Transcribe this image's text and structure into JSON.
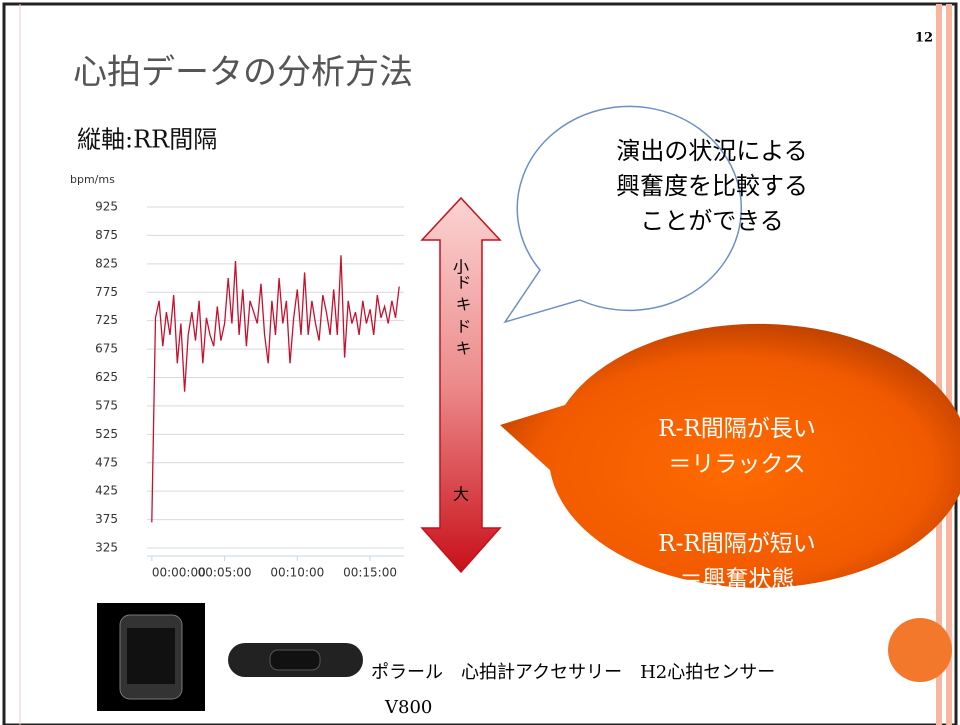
{
  "slide": {
    "page_number": "12",
    "title": "心拍データの分析方法",
    "subtitle": "縦軸:RR間隔",
    "arrow": {
      "top": "小",
      "middle": "ドキドキ",
      "bottom": "大"
    },
    "callout_blue": [
      "演出の状況による",
      "興奮度を比較する",
      "ことができる"
    ],
    "callout_orange": [
      "R-R間隔が長い",
      "＝リラックス",
      "R-R間隔が短い",
      "＝興奮状態"
    ],
    "caption": "ポラール　心拍計アクセサリー　H2心拍センサー",
    "caption_model": "V800"
  },
  "chart_data": {
    "type": "line",
    "y_unit": "bpm/ms",
    "x": [
      0,
      15,
      30,
      45,
      60,
      75,
      90,
      105,
      120,
      135,
      150,
      165,
      180,
      195,
      210,
      225,
      240,
      255,
      270,
      285,
      300,
      315,
      330,
      345,
      360,
      375,
      390,
      405,
      420,
      435,
      450,
      465,
      480,
      495,
      510,
      525,
      540,
      555,
      570,
      585,
      600,
      615,
      630,
      645,
      660,
      675,
      690,
      705,
      720,
      735,
      750,
      765,
      780,
      795,
      810,
      825,
      840,
      855,
      870,
      885,
      900,
      915,
      930,
      945,
      960,
      975,
      990,
      1005,
      1020
    ],
    "series": [
      {
        "color": "#c8102e",
        "values": [
          370,
          730,
          760,
          680,
          740,
          700,
          770,
          650,
          720,
          600,
          700,
          740,
          690,
          760,
          650,
          730,
          700,
          680,
          750,
          690,
          720,
          800,
          720,
          830,
          700,
          780,
          680,
          760,
          740,
          720,
          790,
          700,
          650,
          760,
          700,
          800,
          720,
          760,
          650,
          730,
          780,
          700,
          810,
          700,
          760,
          720,
          690,
          770,
          740,
          700,
          780,
          700,
          840,
          660,
          760,
          720,
          740,
          700,
          760,
          720,
          745,
          700,
          770,
          730,
          750,
          720,
          760,
          730,
          785
        ]
      }
    ],
    "xlim": [
      -20,
      1040
    ],
    "ylim": [
      325,
      925
    ],
    "xticks": [
      {
        "value": 0,
        "label": "00:00:00"
      },
      {
        "value": 300,
        "label": "00:05:00"
      },
      {
        "value": 600,
        "label": "00:10:00"
      },
      {
        "value": 900,
        "label": "00:15:00"
      }
    ],
    "yticks": [
      325,
      375,
      425,
      475,
      525,
      575,
      625,
      675,
      725,
      775,
      825,
      875,
      925
    ],
    "grid": true
  }
}
